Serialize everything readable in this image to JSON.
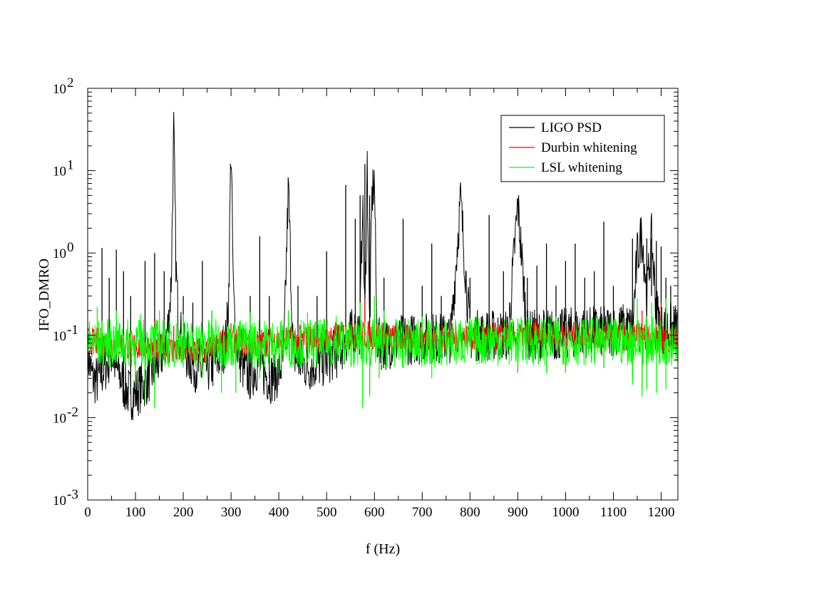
{
  "chart_data": {
    "type": "line",
    "xlabel": "f (Hz)",
    "ylabel": "IFO_DMRO",
    "xlim": [
      0,
      1235
    ],
    "ylim": [
      0.001,
      100
    ],
    "yscale": "log",
    "grid": false,
    "legend_position": "top-right",
    "x_ticks": [
      0,
      100,
      200,
      300,
      400,
      500,
      600,
      700,
      800,
      900,
      1000,
      1100,
      1200
    ],
    "y_ticks": [
      {
        "value": 0.001,
        "base": "10",
        "exp": "-3"
      },
      {
        "value": 0.01,
        "base": "10",
        "exp": "-2"
      },
      {
        "value": 0.1,
        "base": "10",
        "exp": "-1"
      },
      {
        "value": 1,
        "base": "10",
        "exp": "0"
      },
      {
        "value": 10,
        "base": "10",
        "exp": "1"
      },
      {
        "value": 100,
        "base": "10",
        "exp": "2"
      }
    ],
    "series": [
      {
        "name": "LIGO PSD",
        "color": "#000000",
        "x": [
          0,
          10,
          20,
          30,
          40,
          50,
          60,
          70,
          80,
          90,
          100,
          110,
          120,
          130,
          140,
          150,
          160,
          170,
          175,
          180,
          185,
          190,
          200,
          210,
          220,
          230,
          240,
          250,
          260,
          270,
          280,
          290,
          295,
          300,
          305,
          310,
          320,
          330,
          340,
          350,
          360,
          370,
          380,
          390,
          400,
          410,
          420,
          430,
          440,
          450,
          460,
          470,
          480,
          490,
          500,
          510,
          520,
          530,
          540,
          550,
          560,
          570,
          575,
          580,
          585,
          590,
          595,
          600,
          605,
          610,
          620,
          630,
          640,
          650,
          660,
          670,
          680,
          690,
          700,
          720,
          740,
          760,
          780,
          800,
          820,
          840,
          860,
          880,
          900,
          920,
          940,
          960,
          980,
          1000,
          1020,
          1040,
          1060,
          1080,
          1100,
          1120,
          1140,
          1150,
          1160,
          1170,
          1180,
          1190,
          1200,
          1210,
          1220,
          1235
        ],
        "y": [
          0.06,
          0.03,
          0.028,
          0.035,
          0.045,
          0.06,
          0.04,
          0.03,
          0.022,
          0.019,
          0.02,
          0.023,
          0.027,
          0.032,
          0.04,
          0.05,
          0.07,
          0.15,
          0.5,
          32,
          0.6,
          0.15,
          0.07,
          0.055,
          0.045,
          0.04,
          0.038,
          0.04,
          0.042,
          0.05,
          0.06,
          0.09,
          0.3,
          24,
          0.3,
          0.09,
          0.05,
          0.035,
          0.032,
          0.04,
          0.045,
          0.035,
          0.03,
          0.032,
          0.036,
          0.05,
          6.7,
          0.06,
          0.05,
          0.045,
          0.042,
          0.043,
          0.045,
          0.047,
          0.05,
          0.055,
          0.06,
          0.07,
          0.09,
          0.1,
          0.11,
          0.12,
          5,
          0.15,
          12,
          0.1,
          5,
          8,
          0.1,
          0.08,
          0.075,
          0.08,
          0.085,
          0.085,
          0.09,
          0.09,
          0.09,
          0.09,
          0.09,
          0.095,
          0.09,
          0.095,
          4.5,
          0.1,
          0.1,
          0.1,
          0.1,
          0.1,
          4,
          0.1,
          0.1,
          0.105,
          0.1,
          0.105,
          0.11,
          0.11,
          0.11,
          0.11,
          0.115,
          0.12,
          0.12,
          0.9,
          1.8,
          0.3,
          1.5,
          0.2,
          0.12,
          0.12,
          0.12,
          0.12
        ],
        "spikes": [
          [
            30,
            1.15
          ],
          [
            45,
            0.5
          ],
          [
            60,
            1.1
          ],
          [
            75,
            0.6
          ],
          [
            90,
            0.3
          ],
          [
            120,
            0.8
          ],
          [
            140,
            1.0
          ],
          [
            160,
            0.6
          ],
          [
            180,
            32
          ],
          [
            200,
            0.3
          ],
          [
            220,
            0.25
          ],
          [
            240,
            0.8
          ],
          [
            260,
            0.2
          ],
          [
            300,
            24
          ],
          [
            340,
            0.3
          ],
          [
            360,
            1.6
          ],
          [
            380,
            0.3
          ],
          [
            420,
            6.7
          ],
          [
            440,
            0.4
          ],
          [
            480,
            0.3
          ],
          [
            500,
            1.05
          ],
          [
            540,
            6.7
          ],
          [
            560,
            2.6
          ],
          [
            570,
            5
          ],
          [
            580,
            12
          ],
          [
            590,
            5
          ],
          [
            600,
            8
          ],
          [
            620,
            0.5
          ],
          [
            660,
            2.6
          ],
          [
            700,
            0.4
          ],
          [
            720,
            1.3
          ],
          [
            740,
            0.3
          ],
          [
            780,
            4.5
          ],
          [
            800,
            0.5
          ],
          [
            840,
            2.9
          ],
          [
            870,
            0.6
          ],
          [
            900,
            4
          ],
          [
            920,
            0.5
          ],
          [
            940,
            0.7
          ],
          [
            960,
            1.3
          ],
          [
            980,
            0.4
          ],
          [
            1000,
            0.8
          ],
          [
            1020,
            1.3
          ],
          [
            1040,
            0.5
          ],
          [
            1060,
            0.6
          ],
          [
            1080,
            2.4
          ],
          [
            1100,
            0.4
          ],
          [
            1140,
            1.5
          ],
          [
            1150,
            0.9
          ],
          [
            1160,
            1.8
          ],
          [
            1165,
            0.6
          ],
          [
            1170,
            1.5
          ],
          [
            1180,
            0.3
          ],
          [
            1190,
            1.4
          ],
          [
            1200,
            1.2
          ],
          [
            1210,
            0.5
          ],
          [
            1220,
            0.4
          ]
        ]
      },
      {
        "name": "Durbin whitening",
        "color": "#ff0000",
        "x": [
          0,
          50,
          100,
          150,
          200,
          250,
          300,
          350,
          400,
          450,
          500,
          550,
          600,
          650,
          700,
          750,
          800,
          850,
          900,
          950,
          1000,
          1050,
          1100,
          1150,
          1200,
          1235
        ],
        "y": [
          0.085,
          0.08,
          0.075,
          0.07,
          0.065,
          0.065,
          0.09,
          0.08,
          0.085,
          0.09,
          0.095,
          0.1,
          0.1,
          0.09,
          0.09,
          0.09,
          0.095,
          0.095,
          0.1,
          0.1,
          0.1,
          0.1,
          0.1,
          0.095,
          0.09,
          0.09
        ],
        "spikes": [
          [
            60,
            0.2
          ],
          [
            140,
            0.15
          ],
          [
            180,
            0.13
          ],
          [
            300,
            0.14
          ],
          [
            420,
            0.2
          ],
          [
            580,
            0.28
          ],
          [
            600,
            0.22
          ],
          [
            780,
            0.15
          ],
          [
            900,
            0.12
          ],
          [
            1160,
            0.2
          ],
          [
            1200,
            0.25
          ]
        ],
        "dips": [
          [
            590,
            0.02
          ],
          [
            900,
            0.035
          ],
          [
            960,
            0.035
          ],
          [
            1000,
            0.035
          ],
          [
            1080,
            0.04
          ],
          [
            1140,
            0.03
          ],
          [
            1160,
            0.022
          ]
        ]
      },
      {
        "name": "LSL whitening",
        "color": "#00ff00",
        "x": [
          0,
          50,
          100,
          150,
          200,
          250,
          300,
          350,
          400,
          450,
          500,
          550,
          600,
          650,
          700,
          750,
          800,
          850,
          900,
          950,
          1000,
          1050,
          1100,
          1150,
          1200,
          1235
        ],
        "y": [
          0.08,
          0.08,
          0.08,
          0.08,
          0.08,
          0.08,
          0.08,
          0.08,
          0.08,
          0.08,
          0.08,
          0.08,
          0.08,
          0.08,
          0.08,
          0.08,
          0.085,
          0.085,
          0.085,
          0.085,
          0.085,
          0.085,
          0.085,
          0.085,
          0.085,
          0.085
        ],
        "spikes": [
          [
            20,
            0.22
          ],
          [
            60,
            0.2
          ],
          [
            110,
            0.18
          ],
          [
            150,
            0.2
          ],
          [
            200,
            0.18
          ],
          [
            260,
            0.2
          ],
          [
            340,
            0.19
          ],
          [
            420,
            0.2
          ],
          [
            460,
            0.19
          ],
          [
            520,
            0.17
          ],
          [
            570,
            0.25
          ],
          [
            600,
            0.3
          ],
          [
            620,
            0.2
          ],
          [
            700,
            0.17
          ],
          [
            780,
            0.15
          ],
          [
            900,
            0.16
          ],
          [
            1000,
            0.15
          ],
          [
            1150,
            0.28
          ],
          [
            1180,
            0.25
          ],
          [
            1210,
            0.28
          ]
        ],
        "dips": [
          [
            100,
            0.022
          ],
          [
            120,
            0.015
          ],
          [
            140,
            0.013
          ],
          [
            240,
            0.03
          ],
          [
            280,
            0.02
          ],
          [
            310,
            0.02
          ],
          [
            360,
            0.03
          ],
          [
            400,
            0.035
          ],
          [
            480,
            0.04
          ],
          [
            575,
            0.013
          ],
          [
            590,
            0.018
          ],
          [
            610,
            0.03
          ],
          [
            660,
            0.04
          ],
          [
            720,
            0.03
          ],
          [
            900,
            0.035
          ],
          [
            960,
            0.035
          ],
          [
            1000,
            0.035
          ],
          [
            1080,
            0.04
          ],
          [
            1140,
            0.025
          ],
          [
            1160,
            0.018
          ],
          [
            1170,
            0.022
          ],
          [
            1190,
            0.02
          ],
          [
            1210,
            0.022
          ]
        ]
      }
    ]
  }
}
